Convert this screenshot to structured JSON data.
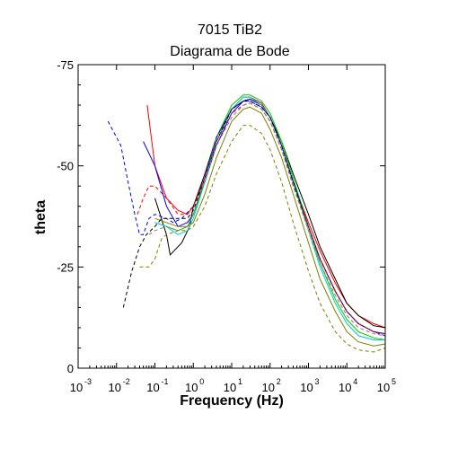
{
  "chart_data": {
    "type": "line",
    "title": "7015 TiB2",
    "subtitle": "Diagrama de Bode",
    "xlabel": "Frequency (Hz)",
    "ylabel": "theta",
    "x_scale": "log",
    "xlim": [
      0.001,
      100000
    ],
    "ylim": [
      0,
      -75
    ],
    "y_ticks": [
      "-75",
      "-50",
      "-25",
      "0"
    ],
    "y_tick_values": [
      -75,
      -50,
      -25,
      0
    ],
    "x_tick_values": [
      0.001,
      0.01,
      0.1,
      1,
      10,
      100,
      1000,
      10000,
      100000
    ],
    "x_tick_labels": [
      {
        "base": "10",
        "exp": "-3"
      },
      {
        "base": "10",
        "exp": "-2"
      },
      {
        "base": "10",
        "exp": "-1"
      },
      {
        "base": "10",
        "exp": "0"
      },
      {
        "base": "10",
        "exp": "1"
      },
      {
        "base": "10",
        "exp": "2"
      },
      {
        "base": "10",
        "exp": "3"
      },
      {
        "base": "10",
        "exp": "4"
      },
      {
        "base": "10",
        "exp": "5"
      }
    ],
    "grid": false,
    "legend": "none",
    "series": [
      {
        "color": "#ff0000",
        "dash": "solid",
        "x": [
          0.063,
          0.1,
          0.2,
          0.4,
          0.7,
          1,
          2,
          4,
          10,
          20,
          30,
          60,
          100,
          200,
          400,
          1000,
          2000,
          5000,
          10000,
          20000,
          50000,
          100000
        ],
        "y": [
          -65,
          -50,
          -42,
          -39,
          -38,
          -40,
          -47,
          -56,
          -64,
          -67,
          -67,
          -65.5,
          -62,
          -55,
          -46,
          -36,
          -29,
          -21,
          -16,
          -13,
          -11,
          -10
        ]
      },
      {
        "color": "#000000",
        "dash": "solid",
        "x": [
          0.1,
          0.2,
          0.25,
          0.5,
          0.8,
          1,
          2,
          4,
          10,
          20,
          30,
          60,
          100,
          200,
          400,
          1000,
          2000,
          5000,
          10000,
          20000,
          50000,
          100000
        ],
        "y": [
          -42,
          -33,
          -28,
          -31,
          -35,
          -40,
          -48,
          -57,
          -64,
          -66,
          -66.5,
          -65,
          -62,
          -56,
          -48,
          -38,
          -30,
          -22,
          -16,
          -13,
          -10.5,
          -10
        ]
      },
      {
        "color": "#0000ff",
        "dash": "solid",
        "x": [
          0.05,
          0.1,
          0.2,
          0.4,
          0.7,
          1,
          2,
          4,
          10,
          20,
          30,
          60,
          100,
          200,
          400,
          1000,
          2000,
          5000,
          10000,
          20000,
          50000,
          100000
        ],
        "y": [
          -56,
          -50,
          -40,
          -35,
          -36,
          -38,
          -46,
          -55,
          -63,
          -66,
          -66.5,
          -65,
          -62,
          -55,
          -46,
          -35,
          -27,
          -19,
          -14,
          -11,
          -9,
          -8.5
        ]
      },
      {
        "color": "#00cc00",
        "dash": "solid",
        "x": [
          0.1,
          0.2,
          0.4,
          0.7,
          1,
          2,
          4,
          10,
          20,
          30,
          60,
          100,
          200,
          400,
          1000,
          2000,
          5000,
          10000,
          20000,
          50000,
          100000
        ],
        "y": [
          -36,
          -35,
          -34,
          -35,
          -38,
          -47,
          -57,
          -65,
          -67.5,
          -67.5,
          -66,
          -63,
          -56,
          -47,
          -35,
          -26,
          -17,
          -12,
          -9,
          -7.5,
          -7
        ]
      },
      {
        "color": "#00cccc",
        "dash": "solid",
        "x": [
          0.1,
          0.2,
          0.4,
          0.7,
          1,
          2,
          4,
          10,
          20,
          30,
          60,
          100,
          200,
          400,
          1000,
          2000,
          5000,
          10000,
          20000,
          50000,
          100000
        ],
        "y": [
          -36,
          -35,
          -33,
          -34,
          -37,
          -46,
          -56,
          -64,
          -67,
          -67,
          -65,
          -62,
          -55,
          -46,
          -34,
          -25,
          -16,
          -11,
          -8,
          -7,
          -7
        ]
      },
      {
        "color": "#808000",
        "dash": "solid",
        "x": [
          0.1,
          0.2,
          0.4,
          0.7,
          1,
          2,
          4,
          10,
          20,
          30,
          60,
          100,
          200,
          400,
          1000,
          2000,
          5000,
          10000,
          20000,
          50000,
          100000
        ],
        "y": [
          -37,
          -36,
          -35,
          -35,
          -36,
          -43,
          -52,
          -61,
          -64,
          -64.5,
          -63,
          -59,
          -52,
          -43,
          -31,
          -22,
          -14,
          -9,
          -6.5,
          -5.5,
          -6
        ]
      },
      {
        "color": "#0000ff",
        "dash": "dashed",
        "x": [
          0.006,
          0.013,
          0.02,
          0.03,
          0.04,
          0.05,
          0.07,
          0.1,
          0.2,
          0.3,
          0.5,
          1,
          2,
          4,
          10,
          20,
          30,
          60,
          100,
          200,
          400,
          1000,
          2000,
          5000,
          10000,
          20000,
          50000,
          100000
        ],
        "y": [
          -61,
          -55,
          -46,
          -38,
          -33,
          -33,
          -37,
          -38,
          -37,
          -36,
          -37,
          -40,
          -48,
          -57,
          -64,
          -66,
          -66,
          -64.5,
          -62,
          -55,
          -46,
          -35,
          -27,
          -19,
          -14,
          -11,
          -9,
          -8
        ]
      },
      {
        "color": "#000000",
        "dash": "dashed",
        "x": [
          0.015,
          0.025,
          0.04,
          0.06,
          0.1,
          0.15,
          0.2,
          0.4,
          0.7,
          1,
          2,
          4,
          10,
          20,
          30,
          60,
          100,
          200,
          400,
          1000,
          2000,
          5000,
          10000,
          20000,
          50000,
          100000
        ],
        "y": [
          -15,
          -24,
          -30,
          -33,
          -35,
          -37,
          -37,
          -37,
          -37,
          -39,
          -47,
          -56,
          -64,
          -66,
          -66,
          -64.5,
          -62,
          -55,
          -46,
          -35,
          -27,
          -19,
          -14,
          -11,
          -9,
          -8.5
        ]
      },
      {
        "color": "#ff0000",
        "dash": "dashed",
        "x": [
          0.035,
          0.05,
          0.07,
          0.1,
          0.2,
          0.4,
          0.7,
          1,
          2,
          4,
          10,
          20,
          30,
          60,
          100,
          200,
          400,
          1000,
          2000,
          5000,
          10000,
          20000,
          50000,
          100000
        ],
        "y": [
          -38,
          -42,
          -45,
          -45,
          -42,
          -38,
          -38,
          -40,
          -47,
          -56,
          -63,
          -65,
          -65.5,
          -64,
          -61,
          -54,
          -45,
          -35,
          -27,
          -19,
          -14,
          -11,
          -9,
          -8.5
        ]
      },
      {
        "color": "#808000",
        "dash": "dashed",
        "x": [
          0.04,
          0.07,
          0.1,
          0.15,
          0.2,
          0.4,
          0.7,
          1,
          2,
          4,
          10,
          20,
          30,
          60,
          100,
          200,
          400,
          1000,
          2000,
          5000,
          10000,
          20000,
          50000,
          100000
        ],
        "y": [
          -25,
          -25,
          -27,
          -32,
          -33,
          -34,
          -34,
          -35,
          -40,
          -48,
          -56,
          -60,
          -60,
          -58,
          -54,
          -46,
          -36,
          -24,
          -16,
          -9,
          -6,
          -4.5,
          -4,
          -5
        ]
      },
      {
        "color": "#808080",
        "dash": "dashed",
        "x": [
          0.07,
          0.1,
          0.2,
          0.4,
          0.7,
          1,
          2,
          4,
          10,
          20,
          30,
          60,
          100,
          200,
          400,
          1000,
          2000,
          5000,
          10000,
          20000,
          50000,
          100000
        ],
        "y": [
          -33,
          -34,
          -35,
          -34,
          -35,
          -38,
          -46,
          -55,
          -62,
          -65,
          -65.5,
          -64,
          -61,
          -54,
          -45,
          -34,
          -26,
          -18,
          -13,
          -10,
          -8.5,
          -8
        ]
      }
    ]
  }
}
